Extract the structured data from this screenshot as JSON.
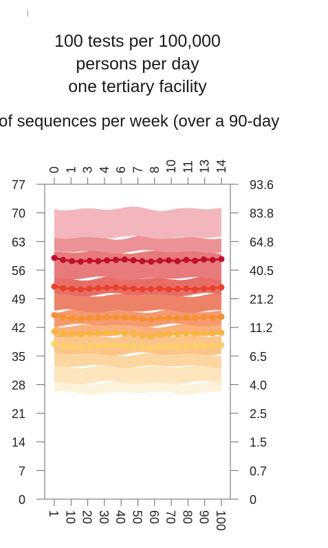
{
  "chart_data": {
    "type": "area",
    "title_lines": [
      "100 tests per 100,000",
      "persons per day",
      "one tertiary facility"
    ],
    "subtitle": "of sequences per week (over a 90-day",
    "x_top_ticks": [
      "0",
      "1",
      "3",
      "4",
      "6",
      "7",
      "8",
      "10",
      "11",
      "13",
      "14"
    ],
    "x_bottom_ticks": [
      "1",
      "10",
      "20",
      "30",
      "40",
      "50",
      "60",
      "70",
      "80",
      "90",
      "100"
    ],
    "y_left_ticks": [
      "77",
      "70",
      "63",
      "56",
      "49",
      "42",
      "35",
      "28",
      "21",
      "14",
      "7",
      "0"
    ],
    "y_right_ticks": [
      "93.6",
      "83.8",
      "64.8",
      "40.5",
      "21.2",
      "11.2",
      "6.5",
      "4.0",
      "2.5",
      "1.5",
      "0.7",
      "0"
    ],
    "ylim": [
      0,
      77
    ],
    "x_range": [
      1,
      100
    ],
    "bands": [
      {
        "lower": 26,
        "upper": 28.5,
        "color": "#fdf3dc"
      },
      {
        "lower": 28.5,
        "upper": 32.5,
        "color": "#fde5bd"
      },
      {
        "lower": 32.5,
        "upper": 35.5,
        "color": "#fcd6a0"
      },
      {
        "lower": 35.5,
        "upper": 40,
        "color": "#fbc58a"
      },
      {
        "lower": 40,
        "upper": 42.5,
        "color": "#f9b07a"
      },
      {
        "lower": 42.5,
        "upper": 46,
        "color": "#f59a6f"
      },
      {
        "lower": 46,
        "upper": 50,
        "color": "#ee8268"
      },
      {
        "lower": 50,
        "upper": 54,
        "color": "#e86d66"
      },
      {
        "lower": 54,
        "upper": 60.5,
        "color": "#e87a7c"
      },
      {
        "lower": 60.5,
        "upper": 64,
        "color": "#ec9195"
      },
      {
        "lower": 64,
        "upper": 71,
        "color": "#f2b6bc"
      }
    ],
    "series": [
      {
        "color": "#c0102a",
        "values": [
          59,
          58.5,
          58.2,
          58.1,
          58.3,
          58.2,
          58.4,
          58.5,
          58.6,
          58.4,
          58.2,
          58.1,
          58.3,
          58.4,
          58.2,
          58.5,
          58.3,
          58.6,
          58.5,
          58.7
        ]
      },
      {
        "color": "#e8412c",
        "values": [
          52,
          51.6,
          51.4,
          51.3,
          51.5,
          51.6,
          51.7,
          51.8,
          51.6,
          51.5,
          51.3,
          51.4,
          51.5,
          51.3,
          51.4,
          51.5,
          51.3,
          51.5,
          51.6,
          51.8
        ]
      },
      {
        "color": "#f7902e",
        "values": [
          45,
          44.5,
          44.2,
          44.1,
          44.3,
          44.4,
          44.5,
          44.6,
          44.4,
          44.3,
          44.0,
          43.9,
          44.2,
          44.3,
          44.2,
          44.4,
          44.3,
          44.5,
          44.4,
          44.6
        ]
      },
      {
        "color": "#fbb63d",
        "values": [
          41,
          40.6,
          40.4,
          40.3,
          40.5,
          40.6,
          40.6,
          40.7,
          40.5,
          40.4,
          40.0,
          39.8,
          40.2,
          40.4,
          40.3,
          40.5,
          40.4,
          40.6,
          40.5,
          40.7
        ]
      },
      {
        "color": "#fcd065",
        "values": [
          38,
          37.5,
          37.2,
          37.1,
          37.3,
          37.5,
          37.6,
          37.7,
          37.5,
          37.4,
          37.1,
          37.0,
          37.2,
          37.4,
          37.3,
          37.5,
          37.4,
          37.6,
          37.5,
          37.7
        ]
      }
    ],
    "grid": false
  }
}
